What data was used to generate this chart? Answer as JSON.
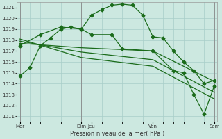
{
  "title": "Pression niveau de la mer( hPa )",
  "bg_color": "#cce8e0",
  "grid_color": "#a8cec8",
  "line_color": "#1a6b1a",
  "ylim": [
    1010.5,
    1021.5
  ],
  "yticks": [
    1011,
    1012,
    1013,
    1014,
    1015,
    1016,
    1017,
    1018,
    1019,
    1020,
    1021
  ],
  "xlim": [
    -0.3,
    19.3
  ],
  "xtick_labels": [
    "Mer",
    "Dim",
    "Jeu",
    "Ven",
    "Sam"
  ],
  "xtick_positions": [
    0,
    6,
    7,
    13,
    19
  ],
  "vline_positions": [
    0,
    6,
    7,
    13,
    19
  ],
  "series1": {
    "x": [
      0,
      1,
      2,
      3,
      4,
      5,
      6,
      7,
      8,
      9,
      10,
      11,
      12,
      13,
      14,
      15,
      16,
      17,
      18,
      19
    ],
    "y": [
      1014.7,
      1015.5,
      1017.5,
      1018.2,
      1019.0,
      1019.2,
      1019.0,
      1020.3,
      1020.8,
      1021.2,
      1021.3,
      1021.2,
      1020.3,
      1018.3,
      1018.2,
      1017.0,
      1016.0,
      1015.2,
      1014.0,
      1014.3
    ]
  },
  "series2": {
    "x": [
      0,
      2,
      4,
      6,
      7,
      9,
      10,
      13,
      15,
      16,
      17,
      18,
      19
    ],
    "y": [
      1017.5,
      1018.5,
      1019.2,
      1019.0,
      1018.5,
      1018.5,
      1017.2,
      1017.0,
      1015.2,
      1015.0,
      1013.0,
      1011.2,
      1013.8
    ]
  },
  "series3": {
    "x": [
      0,
      6,
      13,
      19
    ],
    "y": [
      1017.7,
      1017.3,
      1017.0,
      1014.2
    ]
  },
  "series4": {
    "x": [
      0,
      6,
      13,
      19
    ],
    "y": [
      1017.9,
      1016.9,
      1016.2,
      1013.2
    ]
  },
  "series5": {
    "x": [
      0,
      6,
      13,
      19
    ],
    "y": [
      1018.1,
      1016.4,
      1015.6,
      1012.6
    ]
  }
}
